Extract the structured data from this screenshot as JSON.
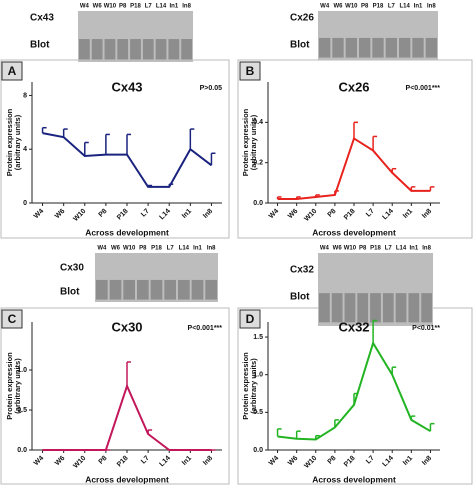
{
  "chart_data": [
    {
      "type": "line",
      "panel": "A",
      "title": "Cx43",
      "annotation": "P>0.05",
      "blot_rows": [
        "Cx43",
        "Blot"
      ],
      "y_label": [
        "Protein expression",
        "(arbitrary units)"
      ],
      "x_label": "Across development",
      "categories": [
        "W4",
        "W6",
        "W10",
        "P8",
        "P18",
        "L7",
        "L14",
        "In1",
        "In8"
      ],
      "series": [
        {
          "name": "Cx43",
          "color": "#1a237e",
          "values": [
            5.2,
            4.9,
            3.5,
            3.6,
            3.6,
            1.2,
            1.2,
            4.0,
            2.8
          ],
          "errors": [
            0.4,
            0.6,
            1.0,
            1.5,
            1.5,
            0.1,
            0.2,
            1.5,
            0.9
          ]
        }
      ],
      "ylim": [
        0,
        9
      ],
      "yticks": [
        0,
        4,
        8
      ]
    },
    {
      "type": "line",
      "panel": "B",
      "title": "Cx26",
      "annotation": "P<0.001***",
      "blot_rows": [
        "Cx26",
        "Blot"
      ],
      "y_label": [
        "Protein expression",
        "(arbitrary units)"
      ],
      "x_label": "Across development",
      "categories": [
        "W4",
        "W6",
        "W10",
        "P8",
        "P18",
        "L7",
        "L14",
        "In1",
        "In8"
      ],
      "series": [
        {
          "name": "Cx26",
          "color": "#e8231e",
          "values": [
            0.02,
            0.02,
            0.03,
            0.04,
            0.32,
            0.26,
            0.15,
            0.06,
            0.06
          ],
          "errors": [
            0.01,
            0.01,
            0.01,
            0.02,
            0.08,
            0.07,
            0.02,
            0.02,
            0.02
          ]
        }
      ],
      "ylim": [
        0,
        0.6
      ],
      "yticks": [
        {
          "value": 0,
          "label": "0.0"
        },
        0.2,
        0.4
      ]
    },
    {
      "type": "line",
      "panel": "C",
      "title": "Cx30",
      "annotation": "P<0.001***",
      "blot_rows": [
        "Cx30",
        "Blot"
      ],
      "y_label": [
        "Protein expression",
        "(arbitrary units)"
      ],
      "x_label": "Across development",
      "categories": [
        "W4",
        "W6",
        "W10",
        "P8",
        "P18",
        "L7",
        "L14",
        "In1",
        "In8"
      ],
      "series": [
        {
          "name": "Cx30",
          "color": "#c2185b",
          "values": [
            0,
            0,
            0,
            0,
            0.8,
            0.2,
            0,
            0,
            0
          ],
          "errors": [
            0,
            0,
            0,
            0,
            0.3,
            0.05,
            0,
            0,
            0
          ]
        }
      ],
      "ylim": [
        0,
        1.6
      ],
      "yticks": [
        {
          "value": 0,
          "label": "0.0"
        },
        0.5,
        {
          "value": 1,
          "label": "1.0"
        }
      ]
    },
    {
      "type": "line",
      "panel": "D",
      "title": "Cx32",
      "annotation": "P<0.01**",
      "blot_rows": [
        "Cx32",
        "Blot"
      ],
      "y_label": [
        "Protein expression",
        "(arbitrary units)"
      ],
      "x_label": "Across development",
      "categories": [
        "W4",
        "W6",
        "W10",
        "P8",
        "P18",
        "L7",
        "L14",
        "In1",
        "In8"
      ],
      "series": [
        {
          "name": "Cx32",
          "color": "#22b422",
          "values": [
            0.18,
            0.15,
            0.14,
            0.3,
            0.6,
            1.42,
            1.0,
            0.4,
            0.25
          ],
          "errors": [
            0.1,
            0.1,
            0.05,
            0.1,
            0.15,
            0.3,
            0.1,
            0.05,
            0.1
          ]
        }
      ],
      "ylim": [
        0,
        1.7
      ],
      "yticks": [
        {
          "value": 0,
          "label": "0.0"
        },
        0.5,
        {
          "value": 1,
          "label": "1.0"
        },
        1.5
      ]
    }
  ]
}
